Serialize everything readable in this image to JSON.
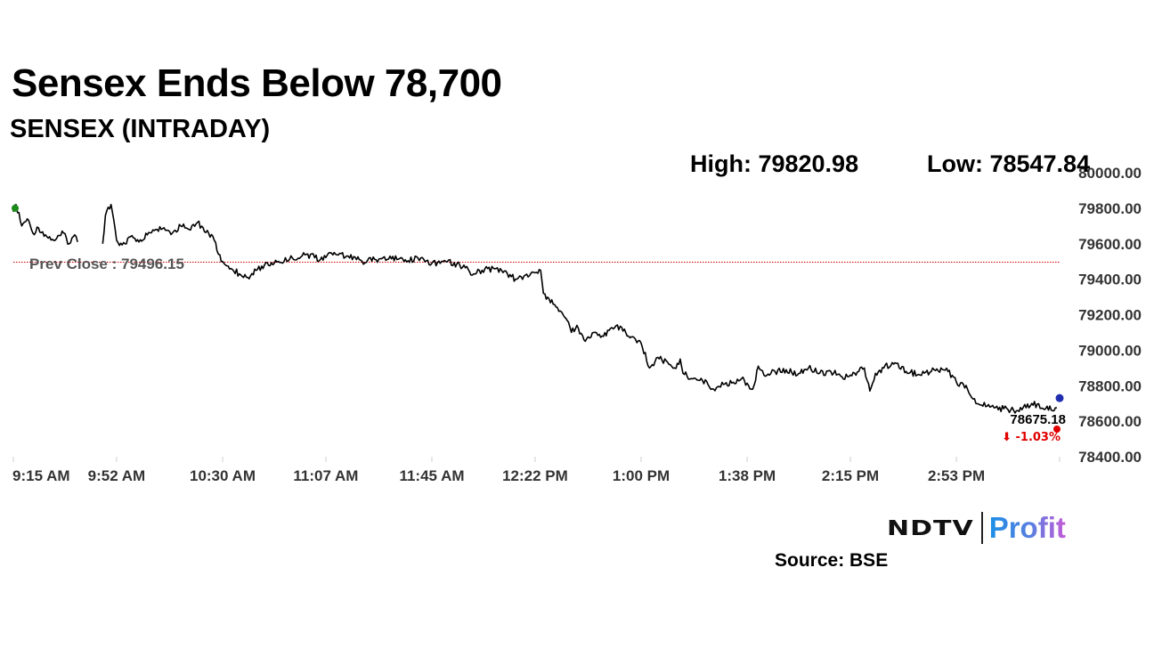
{
  "header": {
    "title": "Sensex Ends Below 78,700",
    "subtitle": "SENSEX (INTRADAY)",
    "high": "High: 79820.98",
    "low": "Low: 78547.84"
  },
  "footer": {
    "logo_left": "NDTV",
    "logo_right": "Profit",
    "source": "Source: BSE"
  },
  "colors": {
    "line": "#000000",
    "prev_close_line": "#cc0000",
    "open_dot": "#1a8a1a",
    "close_dot": "#1f2fb0",
    "change_dot": "#e00000",
    "change_text": "#e00000"
  },
  "chart_data": {
    "type": "line",
    "title": "SENSEX (INTRADAY)",
    "xlabel": "",
    "ylabel": "",
    "ylim": [
      78400,
      80000
    ],
    "xlim": [
      "9:15",
      "15:30"
    ],
    "y_ticks": [
      "80000.00",
      "79800.00",
      "79600.00",
      "79400.00",
      "79200.00",
      "79000.00",
      "78800.00",
      "78600.00",
      "78400.00"
    ],
    "y_tick_values": [
      80000,
      79800,
      79600,
      79400,
      79200,
      79000,
      78800,
      78600,
      78400
    ],
    "x_ticks": [
      "9:15 AM",
      "9:52 AM",
      "10:30 AM",
      "11:07 AM",
      "11:45 AM",
      "12:22 PM",
      "1:00 PM",
      "1:38 PM",
      "2:15 PM",
      "2:53 PM"
    ],
    "x_tick_times": [
      "9:15",
      "9:52",
      "10:30",
      "11:07",
      "11:45",
      "12:22",
      "13:00",
      "13:38",
      "14:15",
      "14:53"
    ],
    "prev_close": 79496.15,
    "prev_close_label": "Prev Close : 79496.15",
    "last_value_label": "78675.18",
    "change_label": "⬇ -1.03%",
    "grid": false,
    "series": [
      {
        "x": [
          "9:15",
          "9:16",
          "9:18",
          "9:20",
          "9:22",
          "9:24",
          "9:27",
          "9:30",
          "9:33",
          "9:35",
          "9:37",
          "9:38",
          "9:47",
          "9:48",
          "9:50",
          "9:52",
          "9:53",
          "9:55",
          "9:57",
          "10:00",
          "10:03",
          "10:06",
          "10:09",
          "10:12",
          "10:15",
          "10:18",
          "10:21",
          "10:23",
          "10:25",
          "10:27",
          "10:28",
          "10:30",
          "10:33",
          "10:36",
          "10:39",
          "10:42",
          "10:45",
          "10:50",
          "10:55",
          "11:00",
          "11:05",
          "11:10",
          "11:15",
          "11:20",
          "11:25",
          "11:30",
          "11:35",
          "11:40",
          "11:45",
          "11:50",
          "11:55",
          "12:00",
          "12:05",
          "12:10",
          "12:15",
          "12:20",
          "12:24",
          "12:25",
          "12:27",
          "12:30",
          "12:33",
          "12:35",
          "12:37",
          "12:40",
          "12:43",
          "12:46",
          "12:50",
          "12:53",
          "12:56",
          "13:00",
          "13:03",
          "13:06",
          "13:10",
          "13:12",
          "13:14",
          "13:15",
          "13:18",
          "13:22",
          "13:26",
          "13:30",
          "13:33",
          "13:36",
          "13:40",
          "13:42",
          "13:44",
          "13:48",
          "13:52",
          "13:56",
          "14:00",
          "14:04",
          "14:08",
          "14:12",
          "14:15",
          "14:18",
          "14:20",
          "14:22",
          "14:24",
          "14:27",
          "14:30",
          "14:35",
          "14:40",
          "14:45",
          "14:50",
          "14:53",
          "14:57",
          "15:00",
          "15:05",
          "15:10",
          "15:15",
          "15:20",
          "15:25",
          "15:29"
        ],
        "values": [
          79780,
          79820,
          79700,
          79740,
          79660,
          79690,
          79640,
          79620,
          79660,
          79600,
          79650,
          79610,
          79600,
          79760,
          79821,
          79620,
          79590,
          79600,
          79640,
          79610,
          79650,
          79680,
          79690,
          79660,
          79700,
          79680,
          79720,
          79690,
          79660,
          79620,
          79560,
          79500,
          79460,
          79430,
          79410,
          79450,
          79480,
          79500,
          79520,
          79540,
          79510,
          79550,
          79530,
          79500,
          79510,
          79530,
          79500,
          79520,
          79490,
          79500,
          79480,
          79430,
          79460,
          79450,
          79400,
          79420,
          79450,
          79320,
          79290,
          79240,
          79180,
          79100,
          79140,
          79050,
          79100,
          79080,
          79120,
          79130,
          79070,
          79040,
          78900,
          78960,
          78920,
          78900,
          78950,
          78870,
          78840,
          78830,
          78780,
          78810,
          78820,
          78840,
          78780,
          78910,
          78860,
          78880,
          78890,
          78860,
          78900,
          78870,
          78880,
          78850,
          78860,
          78880,
          78900,
          78770,
          78870,
          78900,
          78930,
          78880,
          78860,
          78890,
          78880,
          78820,
          78780,
          78700,
          78680,
          78670,
          78660,
          78700,
          78670,
          78675
        ]
      }
    ]
  }
}
